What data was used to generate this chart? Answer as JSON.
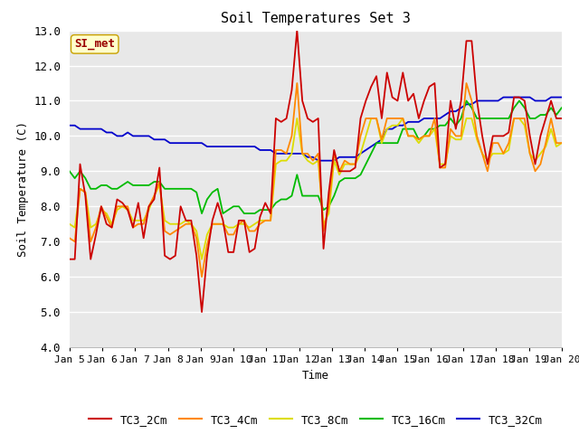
{
  "title": "Soil Temperatures Set 3",
  "xlabel": "Time",
  "ylabel": "Soil Temperature (C)",
  "ylim": [
    4.0,
    13.0
  ],
  "yticks": [
    4.0,
    5.0,
    6.0,
    7.0,
    8.0,
    9.0,
    10.0,
    11.0,
    12.0,
    13.0
  ],
  "xtick_labels": [
    "Jan 5",
    "Jan 6",
    "Jan 7",
    "Jan 8",
    "Jan 9",
    "Jan 10",
    "Jan 11",
    "Jan 12",
    "Jan 13",
    "Jan 14",
    "Jan 15",
    "Jan 16",
    "Jan 17",
    "Jan 18",
    "Jan 19",
    "Jan 20"
  ],
  "fig_bg_color": "#ffffff",
  "plot_bg_color": "#e8e8e8",
  "grid_color": "#ffffff",
  "legend_box_facecolor": "#ffffcc",
  "legend_box_edgecolor": "#c8a000",
  "si_met_text_color": "#990000",
  "series_colors": {
    "TC3_2Cm": "#cc0000",
    "TC3_4Cm": "#ff8800",
    "TC3_8Cm": "#dddd00",
    "TC3_16Cm": "#00bb00",
    "TC3_32Cm": "#0000cc"
  },
  "TC3_2Cm": [
    6.5,
    6.5,
    9.2,
    8.3,
    6.5,
    7.2,
    8.0,
    7.5,
    7.4,
    8.2,
    8.1,
    7.9,
    7.4,
    8.1,
    7.1,
    8.0,
    8.2,
    9.1,
    6.6,
    6.5,
    6.6,
    8.0,
    7.6,
    7.6,
    6.6,
    5.0,
    6.6,
    7.6,
    8.1,
    7.6,
    6.7,
    6.7,
    7.6,
    7.6,
    6.7,
    6.8,
    7.7,
    8.1,
    7.8,
    10.5,
    10.4,
    10.5,
    11.3,
    13.0,
    11.0,
    10.5,
    10.4,
    10.5,
    6.8,
    8.4,
    9.6,
    9.0,
    9.0,
    9.0,
    9.1,
    10.5,
    11.0,
    11.4,
    11.7,
    10.5,
    11.8,
    11.1,
    11.0,
    11.8,
    11.0,
    11.2,
    10.5,
    11.0,
    11.4,
    11.5,
    9.1,
    9.2,
    11.0,
    10.2,
    11.0,
    12.7,
    12.7,
    11.0,
    10.0,
    9.2,
    10.0,
    10.0,
    10.0,
    10.1,
    11.1,
    11.1,
    11.0,
    10.0,
    9.2,
    10.0,
    10.5,
    11.0,
    10.5,
    10.5
  ],
  "TC3_4Cm": [
    7.1,
    7.0,
    8.5,
    8.4,
    7.0,
    7.4,
    8.0,
    7.7,
    7.4,
    8.0,
    8.0,
    8.0,
    7.4,
    7.5,
    7.5,
    8.0,
    8.3,
    8.7,
    7.3,
    7.2,
    7.3,
    7.4,
    7.5,
    7.5,
    7.1,
    6.0,
    6.9,
    7.5,
    7.5,
    7.5,
    7.2,
    7.2,
    7.5,
    7.6,
    7.3,
    7.3,
    7.5,
    7.6,
    7.6,
    9.6,
    9.6,
    9.5,
    10.0,
    11.5,
    9.5,
    9.5,
    9.3,
    9.5,
    7.3,
    8.0,
    9.5,
    9.0,
    9.3,
    9.2,
    9.2,
    10.0,
    10.5,
    10.5,
    10.5,
    9.9,
    10.5,
    10.5,
    10.5,
    10.5,
    10.0,
    10.0,
    9.9,
    10.0,
    10.0,
    10.5,
    9.1,
    9.1,
    10.2,
    10.0,
    10.0,
    11.5,
    11.0,
    10.0,
    9.5,
    9.0,
    9.8,
    9.8,
    9.5,
    9.8,
    10.5,
    10.5,
    10.5,
    9.5,
    9.0,
    9.2,
    9.8,
    10.5,
    9.8,
    9.8
  ],
  "TC3_8Cm": [
    7.5,
    7.4,
    8.5,
    8.4,
    7.4,
    7.5,
    7.9,
    7.8,
    7.5,
    7.9,
    8.0,
    7.9,
    7.6,
    7.6,
    7.6,
    7.9,
    8.3,
    8.6,
    7.6,
    7.5,
    7.5,
    7.5,
    7.6,
    7.5,
    7.3,
    6.5,
    7.2,
    7.5,
    7.5,
    7.5,
    7.4,
    7.4,
    7.5,
    7.5,
    7.4,
    7.5,
    7.6,
    7.6,
    7.6,
    9.2,
    9.3,
    9.3,
    9.5,
    10.5,
    9.5,
    9.3,
    9.2,
    9.3,
    7.5,
    7.8,
    9.3,
    8.9,
    9.2,
    9.2,
    9.2,
    9.5,
    10.0,
    10.5,
    10.5,
    9.8,
    10.2,
    10.3,
    10.3,
    10.5,
    10.0,
    10.0,
    9.8,
    10.0,
    10.0,
    10.2,
    9.2,
    9.2,
    10.0,
    9.9,
    9.9,
    10.5,
    10.5,
    9.9,
    9.5,
    9.3,
    9.5,
    9.5,
    9.5,
    9.6,
    10.5,
    10.5,
    10.3,
    9.5,
    9.3,
    9.5,
    9.7,
    10.2,
    9.7,
    9.8
  ],
  "TC3_16Cm": [
    9.0,
    8.8,
    9.0,
    8.8,
    8.5,
    8.5,
    8.6,
    8.6,
    8.5,
    8.5,
    8.6,
    8.7,
    8.6,
    8.6,
    8.6,
    8.6,
    8.7,
    8.7,
    8.5,
    8.5,
    8.5,
    8.5,
    8.5,
    8.5,
    8.4,
    7.8,
    8.2,
    8.4,
    8.5,
    7.8,
    7.9,
    8.0,
    8.0,
    7.8,
    7.8,
    7.8,
    7.9,
    7.9,
    7.9,
    8.1,
    8.2,
    8.2,
    8.3,
    8.9,
    8.3,
    8.3,
    8.3,
    8.3,
    7.9,
    8.0,
    8.3,
    8.7,
    8.8,
    8.8,
    8.8,
    8.9,
    9.2,
    9.5,
    9.8,
    9.8,
    9.8,
    9.8,
    9.8,
    10.2,
    10.2,
    10.2,
    9.9,
    10.0,
    10.2,
    10.2,
    10.3,
    10.3,
    10.5,
    10.3,
    10.5,
    11.0,
    10.8,
    10.5,
    10.5,
    10.5,
    10.5,
    10.5,
    10.5,
    10.5,
    10.8,
    11.0,
    10.8,
    10.5,
    10.5,
    10.6,
    10.6,
    10.8,
    10.6,
    10.8
  ],
  "TC3_32Cm": [
    10.3,
    10.3,
    10.2,
    10.2,
    10.2,
    10.2,
    10.2,
    10.1,
    10.1,
    10.0,
    10.0,
    10.1,
    10.0,
    10.0,
    10.0,
    10.0,
    9.9,
    9.9,
    9.9,
    9.8,
    9.8,
    9.8,
    9.8,
    9.8,
    9.8,
    9.8,
    9.7,
    9.7,
    9.7,
    9.7,
    9.7,
    9.7,
    9.7,
    9.7,
    9.7,
    9.7,
    9.6,
    9.6,
    9.6,
    9.5,
    9.5,
    9.5,
    9.5,
    9.5,
    9.5,
    9.4,
    9.4,
    9.3,
    9.3,
    9.3,
    9.3,
    9.4,
    9.4,
    9.4,
    9.4,
    9.5,
    9.6,
    9.7,
    9.8,
    9.9,
    10.2,
    10.2,
    10.3,
    10.3,
    10.4,
    10.4,
    10.4,
    10.5,
    10.5,
    10.5,
    10.5,
    10.6,
    10.7,
    10.7,
    10.8,
    10.9,
    10.9,
    11.0,
    11.0,
    11.0,
    11.0,
    11.0,
    11.1,
    11.1,
    11.1,
    11.1,
    11.1,
    11.1,
    11.0,
    11.0,
    11.0,
    11.1,
    11.1,
    11.1
  ]
}
